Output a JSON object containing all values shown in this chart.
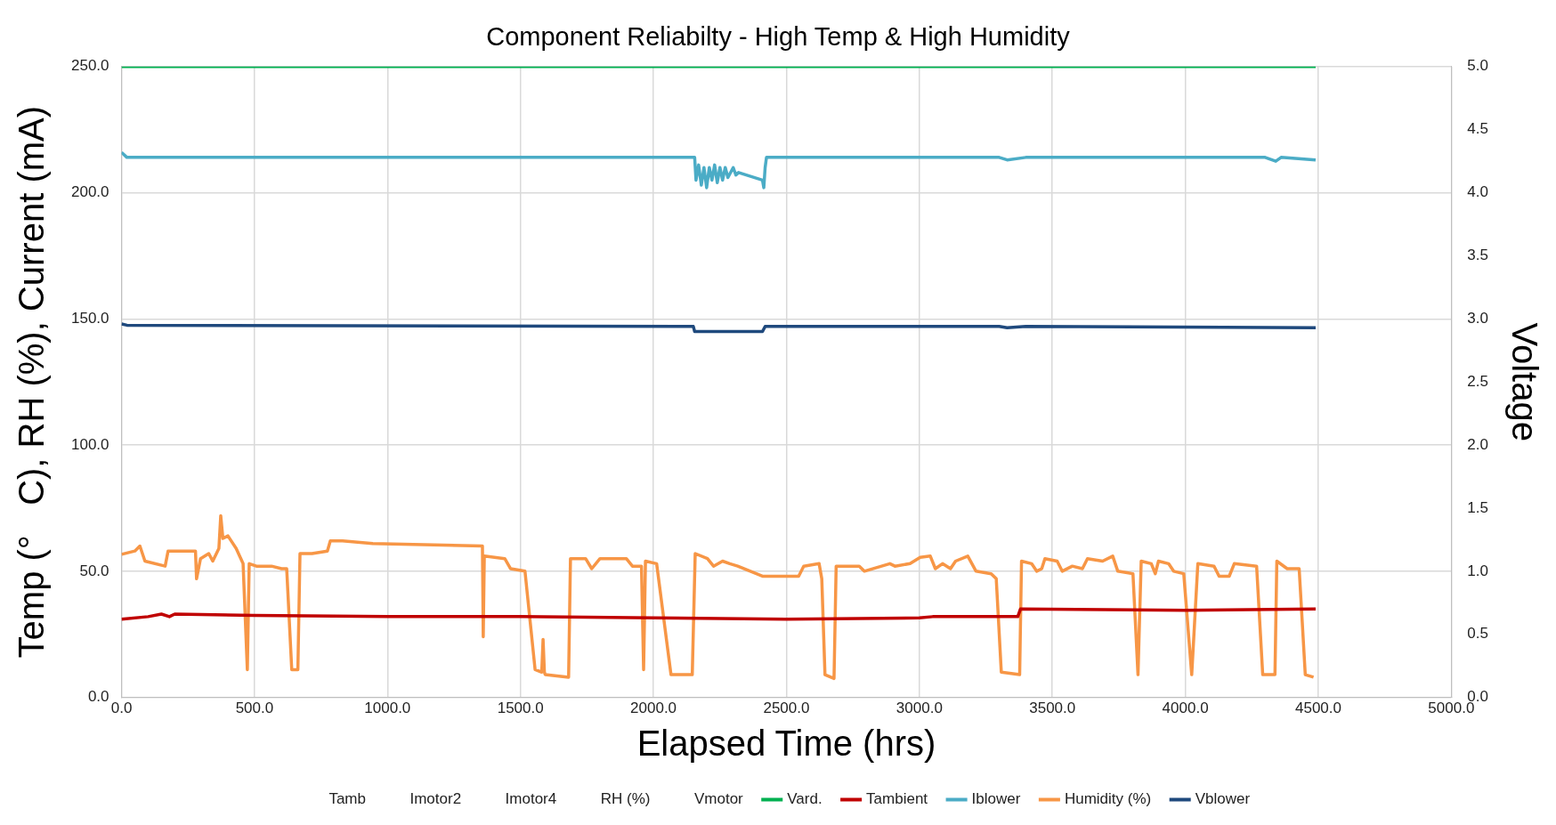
{
  "chart_data": {
    "type": "line",
    "title": "Component Reliabilty - High Temp & High Humidity",
    "xlabel": "Elapsed Time (hrs)",
    "ylabel": "Temp (°   C), RH (%), Current (mA)",
    "y2label": "Voltage",
    "xlim": [
      0,
      5000
    ],
    "xticks": [
      {
        "value": 0,
        "label": "0.0"
      },
      {
        "value": 500,
        "label": "500.0"
      },
      {
        "value": 1000,
        "label": "1000.0"
      },
      {
        "value": 1500,
        "label": "1500.0"
      },
      {
        "value": 2000,
        "label": "2000.0"
      },
      {
        "value": 2500,
        "label": "2500.0"
      },
      {
        "value": 3000,
        "label": "3000.0"
      },
      {
        "value": 3500,
        "label": "3500.0"
      },
      {
        "value": 4000,
        "label": "4000.0"
      },
      {
        "value": 4500,
        "label": "4500.0"
      },
      {
        "value": 5000,
        "label": "5000.0"
      }
    ],
    "ylim": [
      0,
      250
    ],
    "yticks": [
      {
        "value": 0,
        "label": "0.0"
      },
      {
        "value": 50,
        "label": "50.0"
      },
      {
        "value": 100,
        "label": "100.0"
      },
      {
        "value": 150,
        "label": "150.0"
      },
      {
        "value": 200,
        "label": "200.0"
      },
      {
        "value": 250,
        "label": "250.0"
      }
    ],
    "y2lim": [
      0,
      5
    ],
    "y2ticks": [
      {
        "value": 0,
        "label": "0.0"
      },
      {
        "value": 0.5,
        "label": "0.5"
      },
      {
        "value": 1,
        "label": "1.0"
      },
      {
        "value": 1.5,
        "label": "1.5"
      },
      {
        "value": 2,
        "label": "2.0"
      },
      {
        "value": 2.5,
        "label": "2.5"
      },
      {
        "value": 3,
        "label": "3.0"
      },
      {
        "value": 3.5,
        "label": "3.5"
      },
      {
        "value": 4,
        "label": "4.0"
      },
      {
        "value": 4.5,
        "label": "4.5"
      },
      {
        "value": 5,
        "label": "5.0"
      }
    ],
    "grid": true,
    "legend": "bottom",
    "marker": "none",
    "line_style": "solid",
    "series": [
      {
        "name": "Tamb"
      },
      {
        "name": "Imotor2"
      },
      {
        "name": "Imotor4"
      },
      {
        "name": "RH (%)"
      },
      {
        "name": "Vmotor"
      },
      {
        "name": "Vard.",
        "color": "#00b050",
        "axis": "y2",
        "x": [
          0,
          4490
        ],
        "values": [
          5,
          5
        ]
      },
      {
        "name": "Tambient",
        "color": "#c00000",
        "x": [
          0,
          100,
          150,
          180,
          200,
          500,
          1000,
          1500,
          2000,
          2500,
          3000,
          3050,
          3370,
          3380,
          4000,
          4490
        ],
        "values": [
          31,
          32,
          33,
          32,
          33,
          32.5,
          32,
          32,
          31.5,
          31,
          31.5,
          32,
          32,
          35,
          34.5,
          35
        ]
      },
      {
        "name": "Iblower",
        "color": "#4bacc6",
        "x": [
          0,
          20,
          2150,
          2155,
          2160,
          2170,
          2180,
          2190,
          2200,
          2210,
          2220,
          2230,
          2240,
          2250,
          2260,
          2270,
          2280,
          2300,
          2310,
          2320,
          2410,
          2415,
          2420,
          2425,
          3300,
          3330,
          3400,
          4300,
          4340,
          4360,
          4490
        ],
        "values": [
          216,
          214,
          214,
          214,
          205,
          211,
          203,
          210,
          202,
          210,
          205,
          211,
          204,
          210,
          205,
          210,
          206,
          210,
          207,
          208,
          205,
          202,
          210,
          214,
          214,
          213,
          214,
          214,
          212.5,
          214,
          213
        ]
      },
      {
        "name": "Humidity (%)",
        "color": "#f79646",
        "x": [
          0,
          50,
          69,
          88,
          164,
          175,
          278,
          282,
          297,
          328,
          343,
          366,
          373,
          381,
          400,
          431,
          457,
          473,
          480,
          507,
          564,
          602,
          621,
          640,
          663,
          671,
          716,
          774,
          785,
          831,
          945,
          1357,
          1360,
          1364,
          1441,
          1463,
          1517,
          1555,
          1580,
          1585,
          1590,
          1593,
          1681,
          1688,
          1745,
          1768,
          1799,
          1898,
          1921,
          1955,
          1963,
          1970,
          2012,
          2066,
          2146,
          2157,
          2203,
          2226,
          2260,
          2287,
          2317,
          2412,
          2546,
          2565,
          2623,
          2633,
          2645,
          2679,
          2687,
          2774,
          2793,
          2889,
          2908,
          2965,
          3003,
          3041,
          3060,
          3087,
          3117,
          3136,
          3182,
          3213,
          3270,
          3289,
          3308,
          3377,
          3384,
          3422,
          3441,
          3460,
          3472,
          3518,
          3537,
          3575,
          3613,
          3632,
          3689,
          3727,
          3746,
          3803,
          3822,
          3834,
          3872,
          3887,
          3899,
          3937,
          3956,
          3994,
          4024,
          4047,
          4108,
          4127,
          4165,
          4184,
          4268,
          4291,
          4337,
          4344,
          4383,
          4428,
          4451,
          4482
        ],
        "values": [
          56.7,
          58,
          60,
          54,
          52,
          58,
          58,
          47,
          55,
          57,
          54,
          59,
          72,
          63,
          64,
          59,
          53,
          11,
          53,
          52,
          52,
          51,
          51,
          11,
          11,
          57,
          57,
          58,
          62,
          62,
          61,
          60,
          24,
          56,
          55,
          51,
          50,
          11,
          10,
          23,
          10,
          9,
          8,
          55,
          55,
          51,
          55,
          55,
          52,
          52,
          11,
          54,
          53,
          9,
          9,
          57,
          55,
          52,
          54,
          53,
          52,
          48,
          48,
          52,
          53,
          47,
          9,
          7.5,
          52,
          52,
          50,
          53,
          52,
          53,
          55.5,
          56,
          51,
          53,
          51,
          54,
          56,
          50,
          49,
          47,
          10,
          9,
          54,
          53,
          50,
          51,
          55,
          54,
          50,
          52,
          51,
          55,
          54,
          56,
          50,
          49,
          9,
          54,
          53,
          49,
          54,
          53,
          50,
          49,
          9,
          53,
          52,
          48,
          48,
          53,
          52,
          9,
          9,
          54,
          51,
          51,
          9,
          8
        ]
      },
      {
        "name": "Vblower",
        "color": "#1f497d",
        "axis": "y2",
        "x": [
          0,
          20,
          2150,
          2155,
          2410,
          2420,
          3300,
          3330,
          3400,
          4490
        ],
        "values": [
          2.96,
          2.95,
          2.94,
          2.9,
          2.9,
          2.94,
          2.94,
          2.93,
          2.94,
          2.93
        ]
      }
    ]
  }
}
